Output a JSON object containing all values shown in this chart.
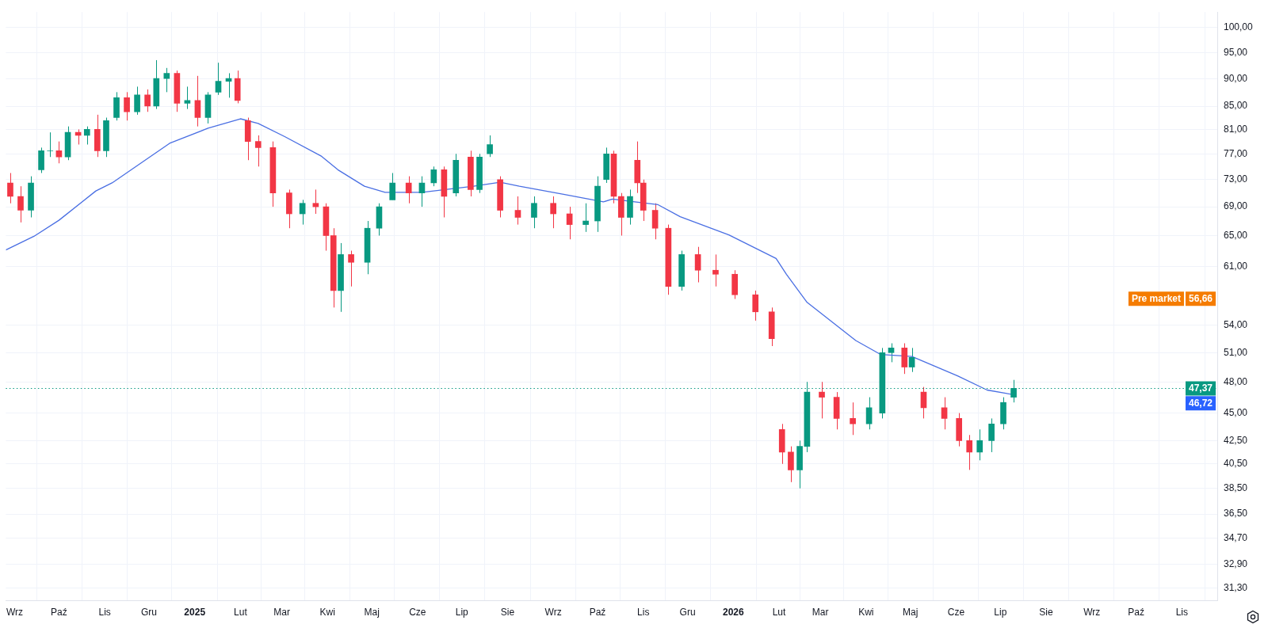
{
  "chart_data": {
    "type": "candlestick",
    "xlim": [
      "2024-08-26",
      "2026-11-25"
    ],
    "ylim": [
      30.5,
      103.3
    ],
    "log": true,
    "grid": true,
    "legend": false,
    "xticks": [
      {
        "value": "2024-09-01",
        "label": "Wrz"
      },
      {
        "value": "2024-10-01",
        "label": "Paź"
      },
      {
        "value": "2024-11-01",
        "label": "Lis"
      },
      {
        "value": "2024-12-01",
        "label": "Gru"
      },
      {
        "value": "2025-01-01",
        "label": "2025"
      },
      {
        "value": "2025-02-01",
        "label": "Lut"
      },
      {
        "value": "2025-03-01",
        "label": "Mar"
      },
      {
        "value": "2025-04-01",
        "label": "Kwi"
      },
      {
        "value": "2025-05-01",
        "label": "Maj"
      },
      {
        "value": "2025-06-01",
        "label": "Cze"
      },
      {
        "value": "2025-07-01",
        "label": "Lip"
      },
      {
        "value": "2025-08-01",
        "label": "Sie"
      },
      {
        "value": "2025-09-01",
        "label": "Wrz"
      },
      {
        "value": "2025-10-01",
        "label": "Paź"
      },
      {
        "value": "2025-11-01",
        "label": "Lis"
      },
      {
        "value": "2025-12-01",
        "label": "Gru"
      },
      {
        "value": "2026-01-01",
        "label": "2026"
      },
      {
        "value": "2026-02-01",
        "label": "Lut"
      },
      {
        "value": "2026-03-01",
        "label": "Mar"
      },
      {
        "value": "2026-04-01",
        "label": "Kwi"
      },
      {
        "value": "2026-05-01",
        "label": "Maj"
      },
      {
        "value": "2026-06-01",
        "label": "Cze"
      },
      {
        "value": "2026-07-01",
        "label": "Lip"
      },
      {
        "value": "2026-08-01",
        "label": "Sie"
      },
      {
        "value": "2026-09-01",
        "label": "Wrz"
      },
      {
        "value": "2026-10-01",
        "label": "Paź"
      },
      {
        "value": "2026-11-01",
        "label": "Lis"
      }
    ],
    "yticks": [
      {
        "value": 31.3,
        "label": "31,30"
      },
      {
        "value": 32.9,
        "label": "32,90"
      },
      {
        "value": 34.7,
        "label": "34,70"
      },
      {
        "value": 36.5,
        "label": "36,50"
      },
      {
        "value": 38.5,
        "label": "38,50"
      },
      {
        "value": 40.5,
        "label": "40,50"
      },
      {
        "value": 42.5,
        "label": "42,50"
      },
      {
        "value": 45,
        "label": "45,00"
      },
      {
        "value": 48,
        "label": "48,00"
      },
      {
        "value": 51,
        "label": "51,00"
      },
      {
        "value": 54,
        "label": "54,00"
      },
      {
        "value": 61,
        "label": "61,00"
      },
      {
        "value": 65,
        "label": "65,00"
      },
      {
        "value": 69,
        "label": "69,00"
      },
      {
        "value": 73,
        "label": "73,00"
      },
      {
        "value": 77,
        "label": "77,00"
      },
      {
        "value": 81,
        "label": "81,00"
      },
      {
        "value": 85,
        "label": "85,00"
      },
      {
        "value": 90,
        "label": "90,00"
      },
      {
        "value": 95,
        "label": "95,00"
      },
      {
        "value": 100,
        "label": "100,00"
      }
    ],
    "ref_lines": [
      {
        "axis": "y",
        "value": 47.37,
        "label": "47,37",
        "color": "#089981",
        "line_style": "dotted"
      }
    ],
    "annotations": [
      "46,72",
      "56,66",
      "Pre market"
    ],
    "series": [
      {
        "x": [
          "2024-08-29",
          "2024-09-05",
          "2024-09-12",
          "2024-09-19",
          "2024-09-25",
          "2024-10-01",
          "2024-10-07",
          "2024-10-14",
          "2024-10-20",
          "2024-10-27",
          "2024-11-02",
          "2024-11-09",
          "2024-11-16",
          "2024-11-23",
          "2024-11-30",
          "2024-12-06",
          "2024-12-13",
          "2024-12-20",
          "2024-12-27",
          "2025-01-03",
          "2025-01-10",
          "2025-01-17",
          "2025-01-24",
          "2025-01-30",
          "2025-02-06",
          "2025-02-13",
          "2025-02-23",
          "2025-03-06",
          "2025-03-15",
          "2025-03-24",
          "2025-03-31",
          "2025-04-05",
          "2025-04-10",
          "2025-04-17",
          "2025-04-28",
          "2025-05-06",
          "2025-05-15",
          "2025-05-26",
          "2025-06-04",
          "2025-06-12",
          "2025-06-19",
          "2025-06-27",
          "2025-07-07",
          "2025-07-13",
          "2025-07-20",
          "2025-07-27",
          "2025-08-08",
          "2025-08-19",
          "2025-09-01",
          "2025-09-12",
          "2025-09-23",
          "2025-10-01",
          "2025-10-07",
          "2025-10-12",
          "2025-10-17",
          "2025-10-23",
          "2025-10-28",
          "2025-11-01",
          "2025-11-09",
          "2025-11-18",
          "2025-11-27",
          "2025-12-08",
          "2025-12-20",
          "2026-01-02",
          "2026-01-16",
          "2026-01-27",
          "2026-02-03",
          "2026-02-09",
          "2026-02-15",
          "2026-02-20",
          "2026-03-02",
          "2026-03-12",
          "2026-03-23",
          "2026-04-03",
          "2026-04-12",
          "2026-04-18",
          "2026-04-27",
          "2026-05-02",
          "2026-05-10",
          "2026-05-24",
          "2026-06-03",
          "2026-06-10",
          "2026-06-17",
          "2026-06-25",
          "2026-07-03",
          "2026-07-10"
        ],
        "ohlc": [
          [
            72.5,
            74,
            69.5,
            70.5
          ],
          [
            70.5,
            72,
            66.8,
            68.5
          ],
          [
            68.5,
            73.5,
            67.5,
            72.5
          ],
          [
            74.5,
            78,
            74,
            77.5
          ],
          [
            77.5,
            80.5,
            76.5,
            77.5
          ],
          [
            77.5,
            79,
            75.5,
            76.5
          ],
          [
            76.5,
            81.5,
            76,
            80.5
          ],
          [
            80.5,
            81,
            78.5,
            80
          ],
          [
            80,
            81.5,
            78.5,
            81
          ],
          [
            81,
            83.5,
            76.5,
            77.5
          ],
          [
            77.5,
            83,
            76.5,
            82.5
          ],
          [
            83,
            87.5,
            82.5,
            86.5
          ],
          [
            86.5,
            87.5,
            82.5,
            84
          ],
          [
            84,
            88.5,
            83.5,
            87
          ],
          [
            87,
            88,
            84,
            85
          ],
          [
            85,
            93.5,
            84.5,
            90
          ],
          [
            90,
            92,
            87.5,
            91
          ],
          [
            91,
            91.5,
            84,
            85.5
          ],
          [
            85.5,
            88.5,
            84.5,
            86
          ],
          [
            86,
            90.5,
            81.5,
            83
          ],
          [
            83,
            87.5,
            82,
            87
          ],
          [
            87.5,
            93,
            87,
            89.5
          ],
          [
            89.5,
            91,
            86.5,
            90
          ],
          [
            90,
            91.5,
            85.5,
            86
          ],
          [
            82.5,
            83,
            76,
            79
          ],
          [
            79,
            80,
            75,
            78
          ],
          [
            78,
            79,
            69,
            71
          ],
          [
            71,
            71.5,
            66,
            68
          ],
          [
            68,
            70,
            66.5,
            69.5
          ],
          [
            69.5,
            71.5,
            68,
            69
          ],
          [
            69,
            69.5,
            63,
            65
          ],
          [
            65,
            66,
            56,
            58
          ],
          [
            58,
            64,
            55.5,
            62.5
          ],
          [
            62.5,
            63,
            58.5,
            61.5
          ],
          [
            61.5,
            67,
            60,
            66
          ],
          [
            66,
            69.5,
            65,
            69
          ],
          [
            70,
            74,
            70,
            72.5
          ],
          [
            72.5,
            73.5,
            69.5,
            71
          ],
          [
            71,
            73.5,
            69,
            72.5
          ],
          [
            72.5,
            75,
            72,
            74.5
          ],
          [
            74.5,
            75,
            67.5,
            70.5
          ],
          [
            71,
            77,
            70.5,
            76
          ],
          [
            76.5,
            77.5,
            70.5,
            71.5
          ],
          [
            71.5,
            77,
            71,
            76.5
          ],
          [
            77,
            80,
            76.5,
            78.5
          ],
          [
            73,
            73.5,
            67.5,
            68.5
          ],
          [
            68.5,
            70.5,
            66.5,
            67.5
          ],
          [
            67.5,
            70.5,
            66,
            69.5
          ],
          [
            69.5,
            70.5,
            66,
            68
          ],
          [
            68,
            69,
            64.5,
            66.5
          ],
          [
            66.5,
            69.5,
            65.5,
            67
          ],
          [
            67,
            73.5,
            65.5,
            72
          ],
          [
            73,
            78,
            72.5,
            77
          ],
          [
            77,
            77.5,
            69.5,
            70.5
          ],
          [
            70.5,
            71,
            65,
            67.5
          ],
          [
            67.5,
            71.5,
            66.5,
            70.5
          ],
          [
            76,
            79,
            71,
            72.5
          ],
          [
            72.5,
            73,
            67,
            68.5
          ],
          [
            68.5,
            69.5,
            64.5,
            66
          ],
          [
            66,
            66.5,
            57.5,
            58.5
          ],
          [
            58.5,
            63,
            58,
            62.5
          ],
          [
            62.5,
            63.5,
            59,
            60.5
          ],
          [
            60.5,
            62.5,
            58.5,
            60
          ],
          [
            60,
            60.5,
            57,
            57.5
          ],
          [
            57.5,
            58,
            54.5,
            55.5
          ],
          [
            55.5,
            56,
            51.7,
            52.5
          ],
          [
            43.5,
            44,
            40.5,
            41.5
          ],
          [
            41.5,
            42,
            39,
            40
          ],
          [
            40,
            42.5,
            38.5,
            42
          ],
          [
            42,
            48,
            41.5,
            47
          ],
          [
            47,
            48,
            44.5,
            46.5
          ],
          [
            46.5,
            47,
            43.5,
            44.5
          ],
          [
            44.5,
            46,
            43,
            44
          ],
          [
            44,
            46.5,
            43.5,
            45.5
          ],
          [
            45,
            51.5,
            44.5,
            51
          ],
          [
            51,
            52,
            50,
            51.5
          ],
          [
            51.5,
            52,
            48.8,
            49.5
          ],
          [
            49.5,
            51.5,
            49,
            50.5
          ],
          [
            47,
            47.5,
            44.5,
            45.5
          ],
          [
            45.5,
            46.5,
            43.5,
            44.5
          ],
          [
            44.5,
            45,
            42,
            42.5
          ],
          [
            42.5,
            43,
            40,
            41.5
          ],
          [
            41.5,
            43.5,
            40.8,
            42.5
          ],
          [
            42.5,
            44.5,
            41.5,
            44
          ],
          [
            44,
            46.5,
            43.5,
            46
          ],
          [
            46.5,
            48.2,
            46,
            47.37
          ]
        ],
        "colors": [
          "#f23645",
          "#f23645",
          "#089981",
          "#089981",
          "#089981",
          "#f23645",
          "#089981",
          "#f23645",
          "#089981",
          "#f23645",
          "#089981",
          "#089981",
          "#f23645",
          "#089981",
          "#f23645",
          "#089981",
          "#089981",
          "#f23645",
          "#089981",
          "#f23645",
          "#089981",
          "#089981",
          "#089981",
          "#f23645",
          "#f23645",
          "#f23645",
          "#f23645",
          "#f23645",
          "#089981",
          "#f23645",
          "#f23645",
          "#f23645",
          "#089981",
          "#f23645",
          "#089981",
          "#089981",
          "#089981",
          "#f23645",
          "#089981",
          "#089981",
          "#f23645",
          "#089981",
          "#f23645",
          "#089981",
          "#089981",
          "#f23645",
          "#f23645",
          "#089981",
          "#f23645",
          "#f23645",
          "#089981",
          "#089981",
          "#089981",
          "#f23645",
          "#f23645",
          "#089981",
          "#f23645",
          "#f23645",
          "#f23645",
          "#f23645",
          "#089981",
          "#f23645",
          "#f23645",
          "#f23645",
          "#f23645",
          "#f23645",
          "#f23645",
          "#f23645",
          "#089981",
          "#089981",
          "#f23645",
          "#f23645",
          "#f23645",
          "#089981",
          "#089981",
          "#089981",
          "#f23645",
          "#089981",
          "#f23645",
          "#f23645",
          "#f23645",
          "#f23645",
          "#089981",
          "#089981",
          "#089981",
          "#089981"
        ]
      },
      {
        "type": "line",
        "color": "#4a6fe3",
        "x": [
          "2024-08-26",
          "2024-09-14",
          "2024-10-01",
          "2024-10-26",
          "2024-11-06",
          "2024-11-29",
          "2024-12-15",
          "2025-01-10",
          "2025-02-01",
          "2025-02-13",
          "2025-03-03",
          "2025-03-28",
          "2025-04-08",
          "2025-04-26",
          "2025-05-10",
          "2025-06-04",
          "2025-07-09",
          "2025-07-27",
          "2025-08-09",
          "2025-09-08",
          "2025-10-05",
          "2025-10-11",
          "2025-11-11",
          "2025-11-26",
          "2025-12-29",
          "2026-01-30",
          "2026-02-06",
          "2026-02-20",
          "2026-03-25",
          "2026-04-11",
          "2026-05-02",
          "2026-06-02",
          "2026-06-22",
          "2026-07-11"
        ],
        "values": [
          63.1,
          64.9,
          67.1,
          71.3,
          72.5,
          76.1,
          78.7,
          81.2,
          82.8,
          82,
          79.8,
          76.6,
          74.5,
          72,
          71.1,
          71.1,
          72,
          72.6,
          72,
          70.8,
          69.7,
          70.1,
          69.3,
          67.6,
          65.1,
          62,
          60,
          56.6,
          52.3,
          50.8,
          50.6,
          48.6,
          47.2,
          46.72
        ]
      }
    ]
  }
}
